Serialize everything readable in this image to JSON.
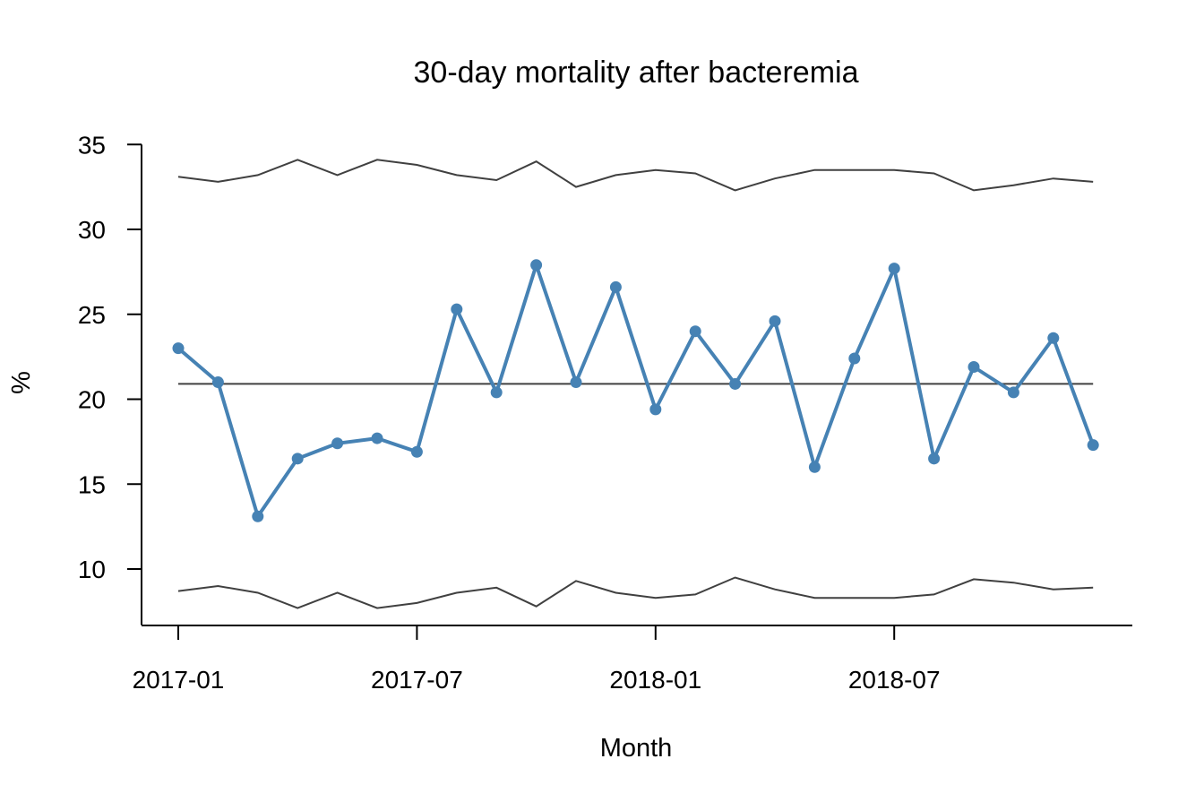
{
  "chart_data": {
    "type": "line",
    "title": "30-day mortality after bacteremia",
    "xlabel": "Month",
    "ylabel": "%",
    "x": [
      "2017-01",
      "2017-02",
      "2017-03",
      "2017-04",
      "2017-05",
      "2017-06",
      "2017-07",
      "2017-08",
      "2017-09",
      "2017-10",
      "2017-11",
      "2017-12",
      "2018-01",
      "2018-02",
      "2018-03",
      "2018-04",
      "2018-05",
      "2018-06",
      "2018-07",
      "2018-08",
      "2018-09",
      "2018-10",
      "2018-11",
      "2018-12"
    ],
    "x_ticks": [
      "2017-01",
      "2017-07",
      "2018-01",
      "2018-07"
    ],
    "y_ticks": [
      10,
      15,
      20,
      25,
      30,
      35
    ],
    "ylim": [
      6.7,
      35
    ],
    "grid": false,
    "series": [
      {
        "role": "observed",
        "color": "#4682b4",
        "values": [
          23.0,
          21.0,
          13.1,
          16.5,
          17.4,
          17.7,
          16.9,
          25.3,
          20.4,
          27.9,
          21.0,
          26.6,
          19.4,
          24.0,
          20.9,
          24.6,
          16.0,
          22.4,
          27.7,
          16.5,
          21.9,
          20.4,
          23.6,
          17.3
        ]
      },
      {
        "role": "center",
        "color": "#404040",
        "values": [
          20.9,
          20.9,
          20.9,
          20.9,
          20.9,
          20.9,
          20.9,
          20.9,
          20.9,
          20.9,
          20.9,
          20.9,
          20.9,
          20.9,
          20.9,
          20.9,
          20.9,
          20.9,
          20.9,
          20.9,
          20.9,
          20.9,
          20.9,
          20.9
        ]
      },
      {
        "role": "upper-limit",
        "color": "#404040",
        "values": [
          33.1,
          32.8,
          33.2,
          34.1,
          33.2,
          34.1,
          33.8,
          33.2,
          32.9,
          34.0,
          32.5,
          33.2,
          33.5,
          33.3,
          32.3,
          33.0,
          33.5,
          33.5,
          33.5,
          33.3,
          32.3,
          32.6,
          33.0,
          32.8
        ]
      },
      {
        "role": "lower-limit",
        "color": "#404040",
        "values": [
          8.7,
          9.0,
          8.6,
          7.7,
          8.6,
          7.7,
          8.0,
          8.6,
          8.9,
          7.8,
          9.3,
          8.6,
          8.3,
          8.5,
          9.5,
          8.8,
          8.3,
          8.3,
          8.3,
          8.5,
          9.4,
          9.2,
          8.8,
          8.9
        ]
      }
    ]
  }
}
